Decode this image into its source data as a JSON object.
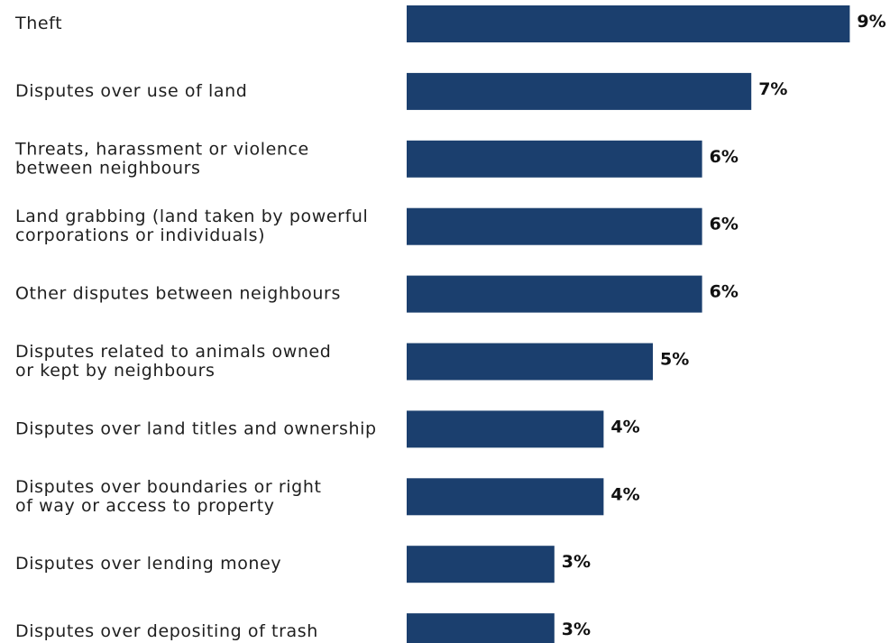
{
  "chart_data": {
    "type": "bar",
    "orientation": "horizontal",
    "categories": [
      [
        "Theft"
      ],
      [
        "Disputes over use of land"
      ],
      [
        "Threats, harassment or violence",
        "between neighbours"
      ],
      [
        "Land grabbing (land taken by powerful",
        "corporations or individuals)"
      ],
      [
        "Other disputes between neighbours"
      ],
      [
        "Disputes related to animals owned",
        "or kept by neighbours"
      ],
      [
        "Disputes over land titles and ownership"
      ],
      [
        "Disputes over boundaries or right",
        "of way or access to property"
      ],
      [
        "Disputes over lending money"
      ],
      [
        "Disputes over depositing of trash"
      ]
    ],
    "values": [
      9,
      7,
      6,
      6,
      6,
      5,
      4,
      4,
      3,
      3
    ],
    "value_labels": [
      "9%",
      "7%",
      "6%",
      "6%",
      "6%",
      "5%",
      "4%",
      "4%",
      "3%",
      "3%"
    ],
    "bar_color": "#1b3f6e",
    "title": "",
    "xlabel": "",
    "ylabel": "",
    "grid": false,
    "legend": "none"
  }
}
